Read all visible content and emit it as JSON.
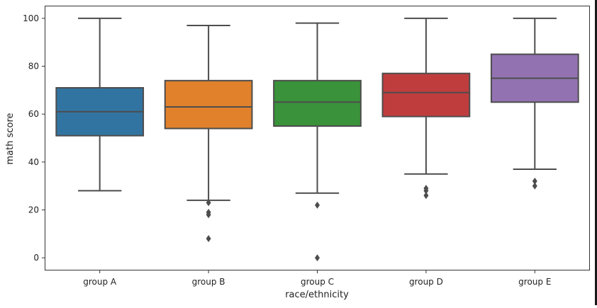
{
  "chart_data": {
    "type": "box",
    "title": "",
    "xlabel": "race/ethnicity",
    "ylabel": "math score",
    "ylim": [
      -5,
      105
    ],
    "yticks": [
      0,
      20,
      40,
      60,
      80,
      100
    ],
    "grid": false,
    "categories": [
      "group A",
      "group B",
      "group C",
      "group D",
      "group E"
    ],
    "boxes": [
      {
        "category": "group A",
        "whisker_low": 28,
        "q1": 51,
        "median": 61,
        "q3": 71,
        "whisker_high": 100,
        "outliers": [],
        "color": "#3274a1"
      },
      {
        "category": "group B",
        "whisker_low": 24,
        "q1": 54,
        "median": 63,
        "q3": 74,
        "whisker_high": 97,
        "outliers": [
          23,
          19,
          18,
          8
        ],
        "color": "#e1812c"
      },
      {
        "category": "group C",
        "whisker_low": 27,
        "q1": 55,
        "median": 65,
        "q3": 74,
        "whisker_high": 98,
        "outliers": [
          22,
          0
        ],
        "color": "#3a923a"
      },
      {
        "category": "group D",
        "whisker_low": 35,
        "q1": 59,
        "median": 69,
        "q3": 77,
        "whisker_high": 100,
        "outliers": [
          29,
          28,
          26
        ],
        "color": "#c03d3e"
      },
      {
        "category": "group E",
        "whisker_low": 37,
        "q1": 65,
        "median": 75,
        "q3": 85,
        "whisker_high": 100,
        "outliers": [
          32,
          30
        ],
        "color": "#9372b2"
      }
    ]
  }
}
